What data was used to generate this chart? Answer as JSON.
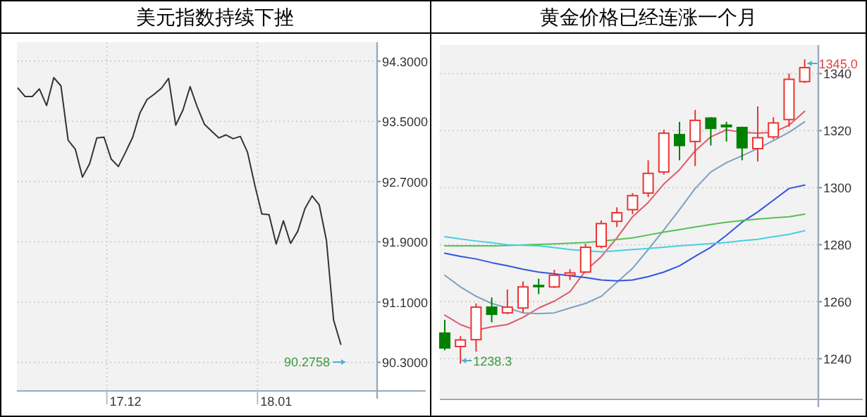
{
  "chart_data": [
    {
      "type": "line",
      "title": "美元指数持续下挫",
      "color": "#333333",
      "categories": [
        null,
        null,
        null,
        null,
        null,
        null,
        null,
        null,
        null,
        null,
        null,
        null,
        null,
        null,
        null,
        "17.12",
        null,
        null,
        null,
        null,
        null,
        null,
        null,
        null,
        null,
        null,
        null,
        null,
        null,
        null,
        null,
        null,
        null,
        null,
        null,
        null,
        "18.01",
        null,
        null,
        null,
        null,
        null,
        null,
        null,
        null,
        null
      ],
      "values": [
        93.94,
        93.83,
        93.83,
        93.93,
        93.71,
        94.08,
        93.97,
        93.25,
        93.13,
        92.76,
        92.94,
        93.28,
        93.29,
        93.0,
        92.9,
        93.09,
        93.29,
        93.61,
        93.79,
        93.86,
        93.94,
        94.07,
        93.45,
        93.65,
        93.96,
        93.69,
        93.46,
        93.37,
        93.28,
        93.32,
        93.27,
        93.3,
        93.09,
        92.66,
        92.27,
        92.26,
        91.87,
        92.18,
        91.88,
        92.04,
        92.34,
        92.51,
        92.39,
        91.92,
        90.86,
        90.54
      ],
      "ylim": [
        89.93,
        94.55
      ],
      "yticks": [
        {
          "value": 90.3,
          "label": "90.3000"
        },
        {
          "value": 91.1,
          "label": "91.1000"
        },
        {
          "value": 91.9,
          "label": "91.9000"
        },
        {
          "value": 92.7,
          "label": "92.7000"
        },
        {
          "value": 93.5,
          "label": "93.5000"
        },
        {
          "value": 94.3,
          "label": "94.3000"
        }
      ],
      "grid": true,
      "annotations": [
        "90.2758"
      ]
    },
    {
      "type": "candlestick",
      "title": "黄金价格已经连涨一个月",
      "categories": [
        null,
        null,
        null,
        null,
        null,
        null,
        null,
        null,
        null,
        null,
        null,
        null,
        null,
        null,
        null,
        null,
        null,
        null,
        null,
        null,
        null,
        null,
        null,
        null
      ],
      "ohlc": [
        [
          1249.0,
          1253.6,
          1243.0,
          1243.8
        ],
        [
          1244.3,
          1247.9,
          1238.3,
          1246.6
        ],
        [
          1246.7,
          1259.4,
          1242.5,
          1258.1
        ],
        [
          1258.1,
          1261.5,
          1252.8,
          1255.6
        ],
        [
          1256.1,
          1264.3,
          1255.6,
          1258.1
        ],
        [
          1257.8,
          1267.1,
          1256.1,
          1265.2
        ],
        [
          1265.7,
          1268.1,
          1262.7,
          1265.3
        ],
        [
          1265.2,
          1271.2,
          1264.8,
          1269.3
        ],
        [
          1269.3,
          1271.4,
          1267.6,
          1270.1
        ],
        [
          1270.4,
          1280.3,
          1270.1,
          1279.1
        ],
        [
          1279.4,
          1288.5,
          1278.7,
          1287.4
        ],
        [
          1288.2,
          1293.1,
          1286.2,
          1291.2
        ],
        [
          1292.3,
          1298.1,
          1290.7,
          1297.2
        ],
        [
          1298.1,
          1309.6,
          1296.7,
          1305.0
        ],
        [
          1305.5,
          1320.3,
          1304.6,
          1319.1
        ],
        [
          1318.6,
          1323.1,
          1309.6,
          1314.8
        ],
        [
          1316.2,
          1327.3,
          1307.6,
          1323.6
        ],
        [
          1324.4,
          1324.7,
          1314.8,
          1320.8
        ],
        [
          1321.9,
          1323.1,
          1316.2,
          1321.4
        ],
        [
          1321.1,
          1321.4,
          1309.6,
          1314.0
        ],
        [
          1313.7,
          1328.5,
          1309.2,
          1317.5
        ],
        [
          1317.8,
          1324.7,
          1317.0,
          1322.7
        ],
        [
          1323.9,
          1340.0,
          1321.4,
          1338.0
        ],
        [
          1337.2,
          1345.0,
          1336.7,
          1342.1
        ]
      ],
      "colors": [
        "#008000",
        "#ee3333",
        "#ee3333",
        "#008000",
        "#ee3333",
        "#ee3333",
        "#008000",
        "#ee3333",
        "#ee3333",
        "#ee3333",
        "#ee3333",
        "#ee3333",
        "#ee3333",
        "#ee3333",
        "#ee3333",
        "#008000",
        "#ee3333",
        "#008000",
        "#008000",
        "#008000",
        "#ee3333",
        "#ee3333",
        "#ee3333",
        "#ee3333"
      ],
      "series": [
        {
          "type": "line",
          "color": "#e05a6a",
          "values": [
            1255.3,
            1252.0,
            1250.0,
            1251.2,
            1252.0,
            1254.5,
            1257.8,
            1260.2,
            1263.5,
            1270.9,
            1275.8,
            1282.4,
            1289.8,
            1294.8,
            1301.3,
            1306.3,
            1312.9,
            1317.8,
            1320.3,
            1319.4,
            1319.1,
            1319.4,
            1321.9,
            1326.8
          ]
        },
        {
          "type": "line",
          "color": "#7fa0c0",
          "values": [
            1269.3,
            1265.2,
            1261.9,
            1259.4,
            1257.8,
            1256.1,
            1255.8,
            1256.1,
            1257.8,
            1259.4,
            1261.9,
            1266.8,
            1271.7,
            1278.3,
            1285.2,
            1292.3,
            1299.7,
            1305.5,
            1308.8,
            1311.2,
            1313.7,
            1316.5,
            1319.4,
            1323.1
          ]
        },
        {
          "type": "line",
          "color": "#3355dd",
          "values": [
            1277.0,
            1275.9,
            1275.0,
            1273.7,
            1272.6,
            1271.4,
            1270.4,
            1269.8,
            1269.1,
            1268.5,
            1267.6,
            1267.3,
            1267.6,
            1268.8,
            1270.4,
            1272.6,
            1275.9,
            1279.1,
            1283.3,
            1287.9,
            1291.5,
            1295.6,
            1299.7,
            1300.9
          ]
        },
        {
          "type": "line",
          "color": "#55c055",
          "values": [
            1279.6,
            1279.6,
            1279.6,
            1279.6,
            1279.7,
            1279.9,
            1280.1,
            1280.3,
            1280.5,
            1280.8,
            1281.2,
            1281.8,
            1282.4,
            1283.4,
            1284.4,
            1285.3,
            1286.2,
            1287.1,
            1287.9,
            1288.5,
            1289.0,
            1289.4,
            1289.8,
            1290.7
          ]
        },
        {
          "type": "line",
          "color": "#44d0e0",
          "values": [
            1282.8,
            1282.0,
            1281.3,
            1280.7,
            1280.0,
            1279.8,
            1279.6,
            1279.0,
            1278.3,
            1277.9,
            1277.5,
            1277.9,
            1278.3,
            1278.7,
            1279.1,
            1279.6,
            1280.0,
            1280.4,
            1280.8,
            1281.4,
            1281.9,
            1282.8,
            1283.6,
            1284.9
          ]
        }
      ],
      "ylim": [
        1226,
        1350
      ],
      "yticks": [
        1240,
        1260,
        1280,
        1300,
        1320,
        1340
      ],
      "grid": "y",
      "annotations": [
        "1345.0",
        "1238.3"
      ]
    }
  ]
}
